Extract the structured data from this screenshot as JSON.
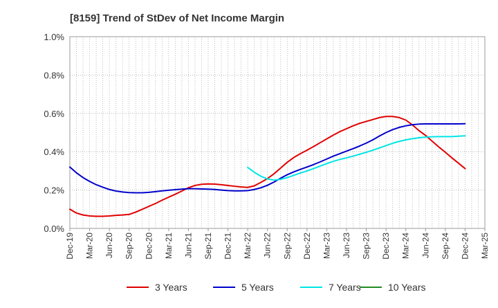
{
  "chart_data": {
    "type": "line",
    "title": "[8159]  Trend of StDev of Net Income Margin",
    "xlabel": "",
    "ylabel": "",
    "ylim": [
      0,
      1.0
    ],
    "y_ticks": [
      "0.0%",
      "0.2%",
      "0.4%",
      "0.6%",
      "0.8%",
      "1.0%"
    ],
    "y_tick_values": [
      0,
      0.2,
      0.4,
      0.6,
      0.8,
      1.0
    ],
    "x_ticks": [
      "Dec-19",
      "Mar-20",
      "Jun-20",
      "Sep-20",
      "Dec-20",
      "Mar-21",
      "Jun-21",
      "Sep-21",
      "Dec-21",
      "Mar-22",
      "Jun-22",
      "Sep-22",
      "Dec-22",
      "Mar-23",
      "Jun-23",
      "Sep-23",
      "Dec-23",
      "Mar-24",
      "Jun-24",
      "Sep-24",
      "Dec-24",
      "Mar-25"
    ],
    "grid": true,
    "legend_position": "bottom",
    "series": [
      {
        "name": "3 Years",
        "color": "#e00000",
        "points": [
          [
            "Dec-19",
            0.1
          ],
          [
            "Jan-20",
            0.08
          ],
          [
            "Feb-20",
            0.07
          ],
          [
            "Mar-20",
            0.065
          ],
          [
            "Apr-20",
            0.063
          ],
          [
            "May-20",
            0.063
          ],
          [
            "Jun-20",
            0.065
          ],
          [
            "Jul-20",
            0.068
          ],
          [
            "Aug-20",
            0.07
          ],
          [
            "Sep-20",
            0.073
          ],
          [
            "Oct-20",
            0.085
          ],
          [
            "Nov-20",
            0.1
          ],
          [
            "Dec-20",
            0.115
          ],
          [
            "Jan-21",
            0.13
          ],
          [
            "Feb-21",
            0.147
          ],
          [
            "Mar-21",
            0.163
          ],
          [
            "Apr-21",
            0.178
          ],
          [
            "May-21",
            0.195
          ],
          [
            "Jun-21",
            0.212
          ],
          [
            "Jul-21",
            0.224
          ],
          [
            "Aug-21",
            0.23
          ],
          [
            "Sep-21",
            0.232
          ],
          [
            "Oct-21",
            0.231
          ],
          [
            "Nov-21",
            0.228
          ],
          [
            "Dec-21",
            0.224
          ],
          [
            "Jan-22",
            0.22
          ],
          [
            "Feb-22",
            0.216
          ],
          [
            "Mar-22",
            0.214
          ],
          [
            "Apr-22",
            0.222
          ],
          [
            "May-22",
            0.24
          ],
          [
            "Jun-22",
            0.26
          ],
          [
            "Jul-22",
            0.285
          ],
          [
            "Aug-22",
            0.315
          ],
          [
            "Sep-22",
            0.345
          ],
          [
            "Oct-22",
            0.37
          ],
          [
            "Nov-22",
            0.39
          ],
          [
            "Dec-22",
            0.408
          ],
          [
            "Jan-23",
            0.427
          ],
          [
            "Feb-23",
            0.447
          ],
          [
            "Mar-23",
            0.467
          ],
          [
            "Apr-23",
            0.487
          ],
          [
            "May-23",
            0.505
          ],
          [
            "Jun-23",
            0.52
          ],
          [
            "Jul-23",
            0.535
          ],
          [
            "Aug-23",
            0.548
          ],
          [
            "Sep-23",
            0.558
          ],
          [
            "Oct-23",
            0.568
          ],
          [
            "Nov-23",
            0.578
          ],
          [
            "Dec-23",
            0.584
          ],
          [
            "Jan-24",
            0.584
          ],
          [
            "Feb-24",
            0.578
          ],
          [
            "Mar-24",
            0.565
          ],
          [
            "Apr-24",
            0.54
          ],
          [
            "May-24",
            0.51
          ],
          [
            "Jun-24",
            0.485
          ],
          [
            "Jul-24",
            0.455
          ],
          [
            "Aug-24",
            0.425
          ],
          [
            "Sep-24",
            0.397
          ],
          [
            "Oct-24",
            0.368
          ],
          [
            "Nov-24",
            0.34
          ],
          [
            "Dec-24",
            0.312
          ]
        ]
      },
      {
        "name": "5 Years",
        "color": "#0000cc",
        "points": [
          [
            "Dec-19",
            0.32
          ],
          [
            "Jan-20",
            0.29
          ],
          [
            "Feb-20",
            0.265
          ],
          [
            "Mar-20",
            0.245
          ],
          [
            "Apr-20",
            0.228
          ],
          [
            "May-20",
            0.215
          ],
          [
            "Jun-20",
            0.203
          ],
          [
            "Jul-20",
            0.195
          ],
          [
            "Aug-20",
            0.19
          ],
          [
            "Sep-20",
            0.187
          ],
          [
            "Oct-20",
            0.186
          ],
          [
            "Nov-20",
            0.186
          ],
          [
            "Dec-20",
            0.188
          ],
          [
            "Jan-21",
            0.192
          ],
          [
            "Feb-21",
            0.196
          ],
          [
            "Mar-21",
            0.199
          ],
          [
            "Apr-21",
            0.202
          ],
          [
            "May-21",
            0.205
          ],
          [
            "Jun-21",
            0.207
          ],
          [
            "Jul-21",
            0.207
          ],
          [
            "Aug-21",
            0.206
          ],
          [
            "Sep-21",
            0.205
          ],
          [
            "Oct-21",
            0.203
          ],
          [
            "Nov-21",
            0.2
          ],
          [
            "Dec-21",
            0.197
          ],
          [
            "Jan-22",
            0.196
          ],
          [
            "Feb-22",
            0.196
          ],
          [
            "Mar-22",
            0.197
          ],
          [
            "Apr-22",
            0.203
          ],
          [
            "May-22",
            0.212
          ],
          [
            "Jun-22",
            0.225
          ],
          [
            "Jul-22",
            0.242
          ],
          [
            "Aug-22",
            0.262
          ],
          [
            "Sep-22",
            0.28
          ],
          [
            "Oct-22",
            0.295
          ],
          [
            "Nov-22",
            0.308
          ],
          [
            "Dec-22",
            0.32
          ],
          [
            "Jan-23",
            0.333
          ],
          [
            "Feb-23",
            0.347
          ],
          [
            "Mar-23",
            0.362
          ],
          [
            "Apr-23",
            0.377
          ],
          [
            "May-23",
            0.39
          ],
          [
            "Jun-23",
            0.403
          ],
          [
            "Jul-23",
            0.416
          ],
          [
            "Aug-23",
            0.43
          ],
          [
            "Sep-23",
            0.445
          ],
          [
            "Oct-23",
            0.462
          ],
          [
            "Nov-23",
            0.482
          ],
          [
            "Dec-23",
            0.5
          ],
          [
            "Jan-24",
            0.515
          ],
          [
            "Feb-24",
            0.527
          ],
          [
            "Mar-24",
            0.535
          ],
          [
            "Apr-24",
            0.541
          ],
          [
            "May-24",
            0.544
          ],
          [
            "Jun-24",
            0.545
          ],
          [
            "Jul-24",
            0.545
          ],
          [
            "Aug-24",
            0.545
          ],
          [
            "Sep-24",
            0.545
          ],
          [
            "Oct-24",
            0.545
          ],
          [
            "Nov-24",
            0.545
          ],
          [
            "Dec-24",
            0.546
          ]
        ]
      },
      {
        "name": "7 Years",
        "color": "#00e5e5",
        "points": [
          [
            "Mar-22",
            0.318
          ],
          [
            "Apr-22",
            0.293
          ],
          [
            "May-22",
            0.272
          ],
          [
            "Jun-22",
            0.258
          ],
          [
            "Jul-22",
            0.252
          ],
          [
            "Aug-22",
            0.256
          ],
          [
            "Sep-22",
            0.265
          ],
          [
            "Oct-22",
            0.277
          ],
          [
            "Nov-22",
            0.289
          ],
          [
            "Dec-22",
            0.3
          ],
          [
            "Jan-23",
            0.312
          ],
          [
            "Feb-23",
            0.325
          ],
          [
            "Mar-23",
            0.338
          ],
          [
            "Apr-23",
            0.35
          ],
          [
            "May-23",
            0.36
          ],
          [
            "Jun-23",
            0.368
          ],
          [
            "Jul-23",
            0.377
          ],
          [
            "Aug-23",
            0.387
          ],
          [
            "Sep-23",
            0.397
          ],
          [
            "Oct-23",
            0.408
          ],
          [
            "Nov-23",
            0.42
          ],
          [
            "Dec-23",
            0.432
          ],
          [
            "Jan-24",
            0.444
          ],
          [
            "Feb-24",
            0.454
          ],
          [
            "Mar-24",
            0.462
          ],
          [
            "Apr-24",
            0.468
          ],
          [
            "May-24",
            0.473
          ],
          [
            "Jun-24",
            0.476
          ],
          [
            "Jul-24",
            0.478
          ],
          [
            "Aug-24",
            0.479
          ],
          [
            "Sep-24",
            0.479
          ],
          [
            "Oct-24",
            0.479
          ],
          [
            "Nov-24",
            0.481
          ],
          [
            "Dec-24",
            0.483
          ]
        ]
      },
      {
        "name": "10 Years",
        "color": "#228b22",
        "points": []
      }
    ]
  }
}
